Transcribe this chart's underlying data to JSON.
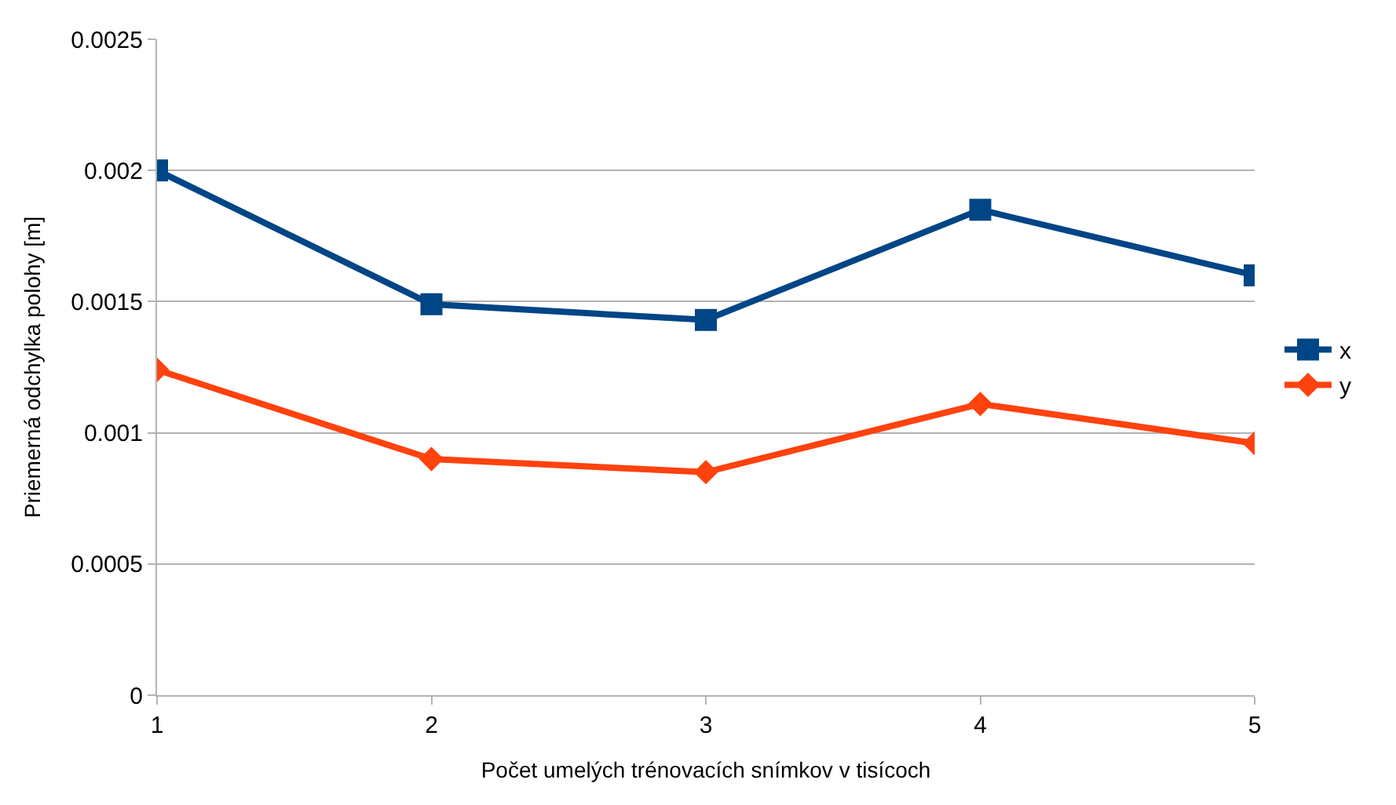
{
  "chart_data": {
    "type": "line",
    "xlabel": "Počet umelých trénovacích snímkov v tisícoch",
    "ylabel": "Priemerná odchylka polohy [m]",
    "x": [
      1,
      2,
      3,
      4,
      5
    ],
    "xlim": [
      1,
      5
    ],
    "xticks": [
      1,
      2,
      3,
      4,
      5
    ],
    "ylim": [
      0,
      0.0025
    ],
    "yticks": [
      0,
      0.0005,
      0.001,
      0.0015,
      0.002,
      0.0025
    ],
    "grid": "y",
    "legend": "right",
    "line_style": "solid",
    "series": [
      {
        "name": "x",
        "color": "#004586",
        "marker": "square",
        "values": [
          0.002,
          0.00149,
          0.00143,
          0.00185,
          0.0016
        ]
      },
      {
        "name": "y",
        "color": "#ff420e",
        "marker": "diamond",
        "values": [
          0.00124,
          0.0009,
          0.00085,
          0.00111,
          0.00096
        ]
      }
    ]
  }
}
